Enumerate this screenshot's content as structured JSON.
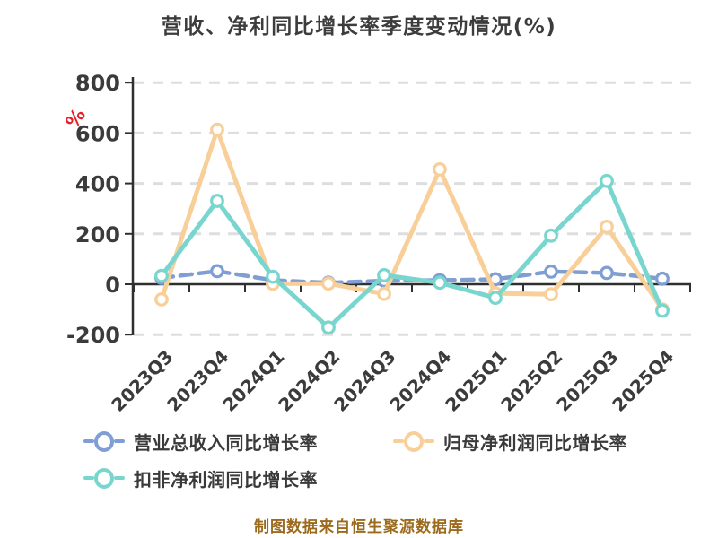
{
  "title": "营收、净利同比增长率季度变动情况(%)",
  "y_axis_unit": "%",
  "footer_note": "制图数据来自恒生聚源数据库",
  "colors": {
    "axis": "#2f2f2f",
    "grid": "#dedede",
    "tick_text": "#3b3b3b",
    "unit_label": "#e62129",
    "footer_text": "#9c6a1c"
  },
  "chart_data": {
    "type": "line",
    "categories": [
      "2023Q3",
      "2023Q4",
      "2024Q1",
      "2024Q2",
      "2024Q3",
      "2024Q4",
      "2025Q1",
      "2025Q2",
      "2025Q3",
      "2025Q4"
    ],
    "series": [
      {
        "name": "营业总收入同比增长率",
        "color": "#7f9ed3",
        "line_style": "dashed",
        "values": [
          25,
          52,
          16,
          6,
          14,
          16,
          20,
          50,
          45,
          22
        ]
      },
      {
        "name": "归母净利润同比增长率",
        "color": "#f8cf99",
        "line_style": "solid",
        "values": [
          -60,
          613,
          2,
          3,
          -38,
          456,
          -36,
          -40,
          228,
          -100
        ]
      },
      {
        "name": "扣非净利润同比增长率",
        "color": "#78d6cf",
        "line_style": "solid",
        "values": [
          33,
          331,
          30,
          -172,
          36,
          6,
          -54,
          193,
          410,
          -105
        ]
      }
    ],
    "ylim": [
      -200,
      800
    ],
    "y_ticks": [
      800,
      600,
      400,
      200,
      0,
      -200
    ],
    "ylabel": "%",
    "grid": "horizontal-dashed",
    "legend_position": "bottom"
  }
}
